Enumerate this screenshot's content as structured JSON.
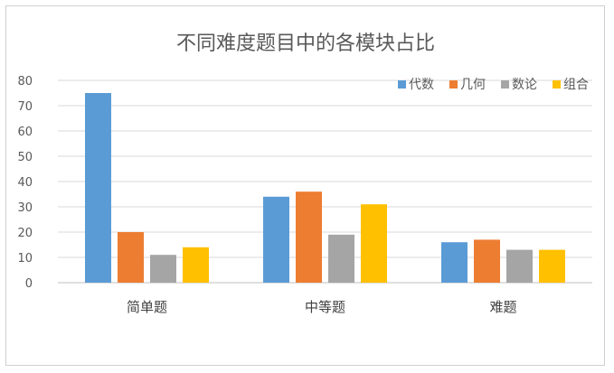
{
  "chart_data": {
    "type": "bar",
    "title": "不同难度题目中的各模块占比",
    "categories": [
      "简单题",
      "中等题",
      "难题"
    ],
    "series": [
      {
        "name": "代数",
        "color": "#5B9BD5",
        "values": [
          75,
          34,
          16
        ]
      },
      {
        "name": "几何",
        "color": "#ED7D31",
        "values": [
          20,
          36,
          17
        ]
      },
      {
        "name": "数论",
        "color": "#A5A5A5",
        "values": [
          11,
          19,
          13
        ]
      },
      {
        "name": "组合",
        "color": "#FFC000",
        "values": [
          14,
          31,
          13
        ]
      }
    ],
    "ylim": [
      0,
      80
    ],
    "yticks": [
      0,
      10,
      20,
      30,
      40,
      50,
      60,
      70,
      80
    ],
    "grid": true,
    "legend_position": "top-right"
  }
}
